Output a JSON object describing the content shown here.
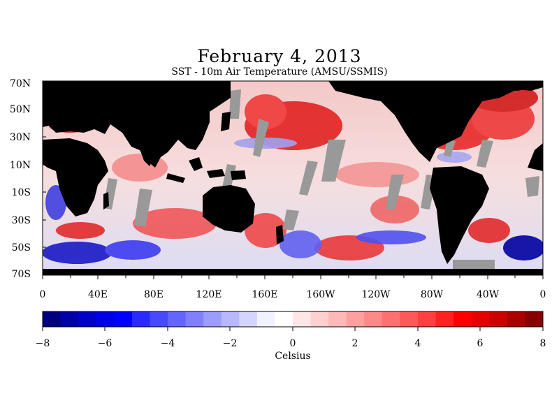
{
  "title": "February 4, 2013",
  "subtitle": "SST - 10m Air Temperature (AMSU/SSMIS)",
  "map": {
    "lat_labels": [
      "70N",
      "50N",
      "30N",
      "10N",
      "10S",
      "30S",
      "50S",
      "70S"
    ],
    "lon_labels": [
      "0",
      "40E",
      "80E",
      "120E",
      "160E",
      "160W",
      "120W",
      "80W",
      "40W",
      "0"
    ],
    "colors": {
      "land": "#000000",
      "no_data": "#999999",
      "ocean_neutral": "#f2ecec"
    }
  },
  "colorbar": {
    "tick_labels": [
      "−8",
      "−6",
      "−4",
      "−2",
      "0",
      "2",
      "4",
      "6",
      "8"
    ],
    "unit_label": "Celsius",
    "range": [
      -8,
      8
    ],
    "colors": [
      "#000080",
      "#0000a8",
      "#0000c8",
      "#0000e6",
      "#0000ff",
      "#2a2aff",
      "#4848ff",
      "#6464ff",
      "#8080ff",
      "#9c9cff",
      "#b8b8ff",
      "#d4d4ff",
      "#f2f2ff",
      "#ffffff",
      "#ffe6e6",
      "#ffd0d0",
      "#ffb8b8",
      "#ffa0a0",
      "#ff8888",
      "#ff7070",
      "#ff5858",
      "#ff4040",
      "#ff2020",
      "#ff0000",
      "#e60000",
      "#cc0000",
      "#aa0000",
      "#880000"
    ]
  }
}
